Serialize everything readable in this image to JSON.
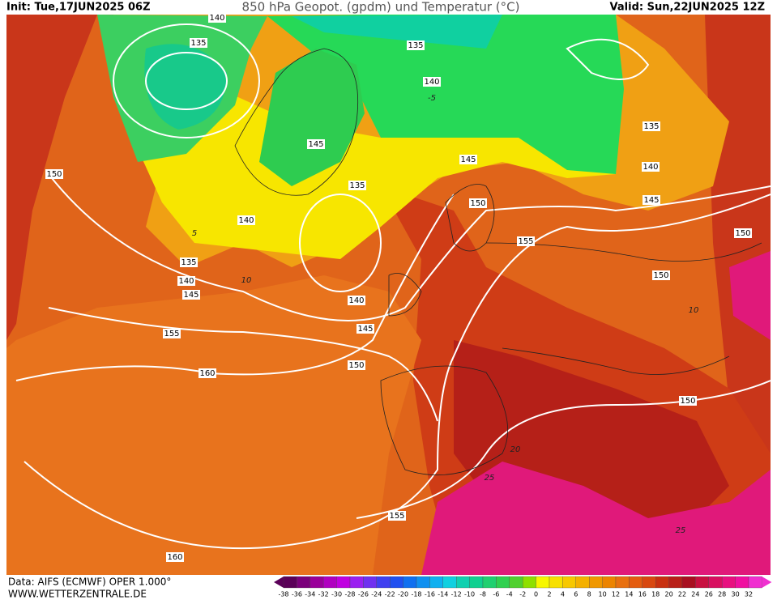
{
  "header": {
    "init": "Init: Tue,17JUN2025 06Z",
    "title": "850 hPa Geopot. (gpdm) und Temperatur (°C)",
    "valid": "Valid: Sun,22JUN2025 12Z"
  },
  "footer": {
    "data": "Data: AIFS (ECMWF) OPER 1.000°",
    "website": "WWW.WETTERZENTRALE.DE"
  },
  "colorbar": {
    "labels": [
      -38,
      -36,
      -34,
      -32,
      -30,
      -28,
      -26,
      -24,
      -22,
      -20,
      -18,
      -16,
      -14,
      -12,
      -10,
      -8,
      -6,
      -4,
      -2,
      0,
      2,
      4,
      6,
      8,
      10,
      12,
      14,
      16,
      18,
      20,
      22,
      24,
      26,
      28,
      30,
      32
    ]
  },
  "geopotential_labels": [
    140,
    135,
    135,
    140,
    145,
    150,
    145,
    135,
    150,
    140,
    135,
    155,
    140,
    145,
    140,
    145,
    155,
    150,
    160,
    155,
    160,
    135,
    140,
    145,
    150,
    150,
    150
  ],
  "temperature_labels": [
    -5,
    5,
    10,
    10,
    20,
    25,
    25
  ]
}
